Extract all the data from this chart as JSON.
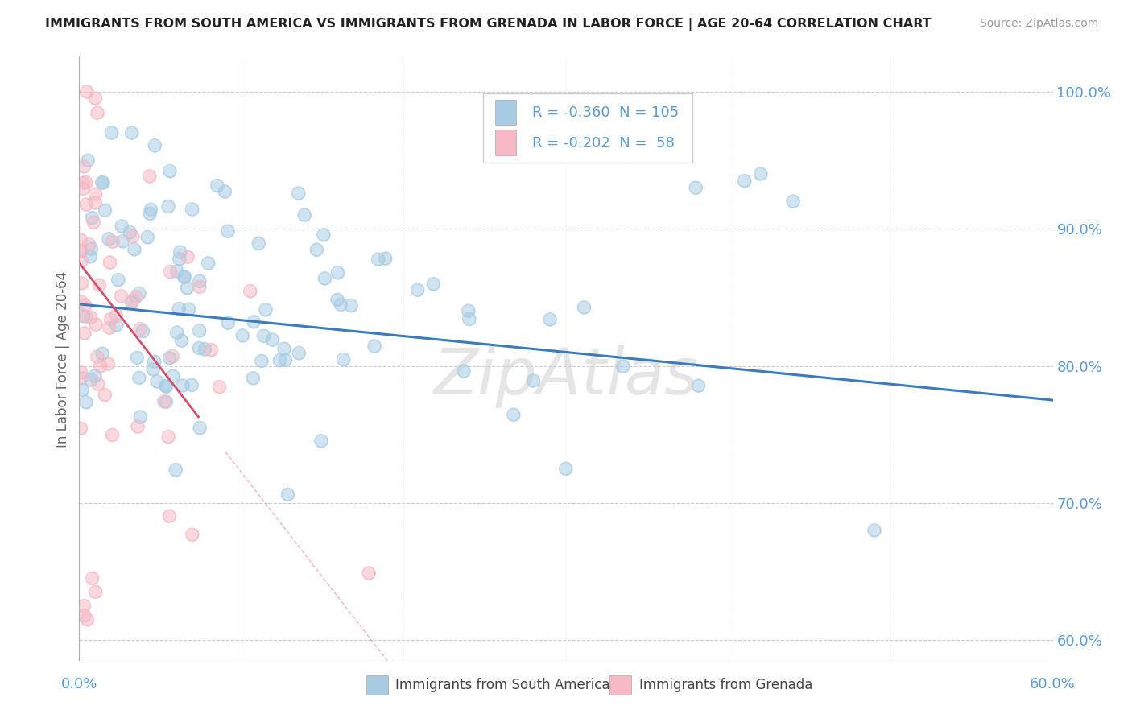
{
  "title": "IMMIGRANTS FROM SOUTH AMERICA VS IMMIGRANTS FROM GRENADA IN LABOR FORCE | AGE 20-64 CORRELATION CHART",
  "source": "Source: ZipAtlas.com",
  "ylabel": "In Labor Force | Age 20-64",
  "y_ticks": [
    0.6,
    0.7,
    0.8,
    0.9,
    1.0
  ],
  "y_tick_labels": [
    "60.0%",
    "70.0%",
    "80.0%",
    "90.0%",
    "100.0%"
  ],
  "xlim": [
    0.0,
    0.6
  ],
  "ylim": [
    0.585,
    1.025
  ],
  "R_blue": -0.36,
  "N_blue": 105,
  "R_pink": -0.202,
  "N_pink": 58,
  "blue_color": "#a8cce4",
  "pink_color": "#f5b8c4",
  "blue_line_color": "#3a7bbf",
  "pink_line_color": "#d4506a",
  "watermark": "ZipAtlas",
  "tick_color": "#5b9bd5"
}
